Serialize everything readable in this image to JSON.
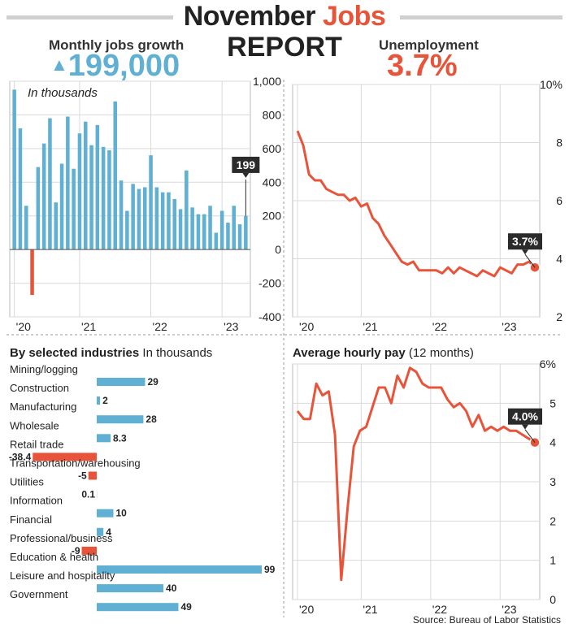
{
  "header": {
    "title_part1": "November ",
    "title_part2": "Jobs",
    "title_line2": "REPORT",
    "accent_color": "#e8543a",
    "jobs_color": "#5fb0d2",
    "jobs_label": "Monthly jobs growth",
    "jobs_arrow": "▲",
    "jobs_value": "199,000",
    "unemp_label": "Unemployment",
    "unemp_value": "3.7%"
  },
  "source": "Source: Bureau of Labor Statistics",
  "chart_data": [
    {
      "type": "bar",
      "name": "monthly-jobs",
      "annotation": "In thousands",
      "callout": "199",
      "ylim": [
        -400,
        1000
      ],
      "yticks": [
        "1,000",
        "800",
        "600",
        "400",
        "200",
        "0",
        "-200",
        "-400"
      ],
      "ytick_values": [
        1000,
        800,
        600,
        400,
        200,
        0,
        -200,
        -400
      ],
      "xticks": [
        "'20",
        "'21",
        "'22",
        "'23"
      ],
      "xtick_index": [
        0,
        11,
        23,
        35
      ],
      "values": [
        950,
        720,
        260,
        -270,
        490,
        630,
        780,
        280,
        510,
        790,
        480,
        690,
        760,
        620,
        740,
        610,
        590,
        880,
        410,
        230,
        390,
        360,
        370,
        560,
        370,
        340,
        340,
        300,
        240,
        470,
        250,
        210,
        210,
        260,
        100,
        230,
        160,
        260,
        150,
        199
      ]
    },
    {
      "type": "line",
      "name": "unemployment",
      "callout": "3.7%",
      "ylim": [
        2,
        10
      ],
      "yticks": [
        "10%",
        "8",
        "6",
        "4",
        "2"
      ],
      "ytick_values": [
        10,
        8,
        6,
        4,
        2
      ],
      "xticks": [
        "'20",
        "'21",
        "'22",
        "'23"
      ],
      "xtick_index": [
        0,
        11,
        23,
        35
      ],
      "values": [
        8.4,
        7.9,
        6.9,
        6.7,
        6.7,
        6.4,
        6.3,
        6.2,
        6.2,
        6.0,
        6.1,
        5.8,
        5.9,
        5.4,
        5.2,
        4.8,
        4.5,
        4.2,
        3.9,
        3.8,
        3.9,
        3.6,
        3.6,
        3.6,
        3.6,
        3.5,
        3.7,
        3.5,
        3.7,
        3.6,
        3.5,
        3.4,
        3.6,
        3.5,
        3.4,
        3.7,
        3.6,
        3.5,
        3.8,
        3.8,
        3.9,
        3.7
      ]
    },
    {
      "type": "bar",
      "name": "industries",
      "title": "By selected industries",
      "subtitle": "In thousands",
      "categories": [
        "Mining/logging",
        "Construction",
        "Manufacturing",
        "Wholesale",
        "Retail trade",
        "Transportation/warehousing",
        "Utilities",
        "Information",
        "Financial",
        "Professional/business",
        "Education & health",
        "Leisure and hospitality",
        "Government"
      ],
      "values": [
        29,
        2,
        28,
        8.3,
        -38.4,
        -5,
        0.1,
        10,
        4,
        -9,
        99,
        40,
        49
      ],
      "value_labels": [
        "29",
        "2",
        "28",
        "8.3",
        "-38.4",
        "-5",
        "0.1",
        "10",
        "4",
        "-9",
        "99",
        "40",
        "49"
      ]
    },
    {
      "type": "line",
      "name": "hourly-pay",
      "title": "Average hourly pay",
      "subtitle": "(12 months)",
      "callout": "4.0%",
      "ylim": [
        0,
        6
      ],
      "yticks": [
        "6%",
        "5",
        "4",
        "3",
        "2",
        "1",
        "0"
      ],
      "ytick_values": [
        6,
        5,
        4,
        3,
        2,
        1,
        0
      ],
      "xticks": [
        "'20",
        "'21",
        "'22",
        "'23"
      ],
      "xtick_index": [
        0,
        11,
        23,
        35
      ],
      "values": [
        4.8,
        4.6,
        4.6,
        5.5,
        5.2,
        5.3,
        4.2,
        0.5,
        2.3,
        3.9,
        4.3,
        4.4,
        4.9,
        5.4,
        5.4,
        5.0,
        5.7,
        5.4,
        5.9,
        5.8,
        5.5,
        5.4,
        5.4,
        5.4,
        5.1,
        4.9,
        5.0,
        4.8,
        4.4,
        4.7,
        4.3,
        4.4,
        4.3,
        4.4,
        4.3,
        4.3,
        4.2,
        4.1,
        4.0
      ]
    }
  ]
}
